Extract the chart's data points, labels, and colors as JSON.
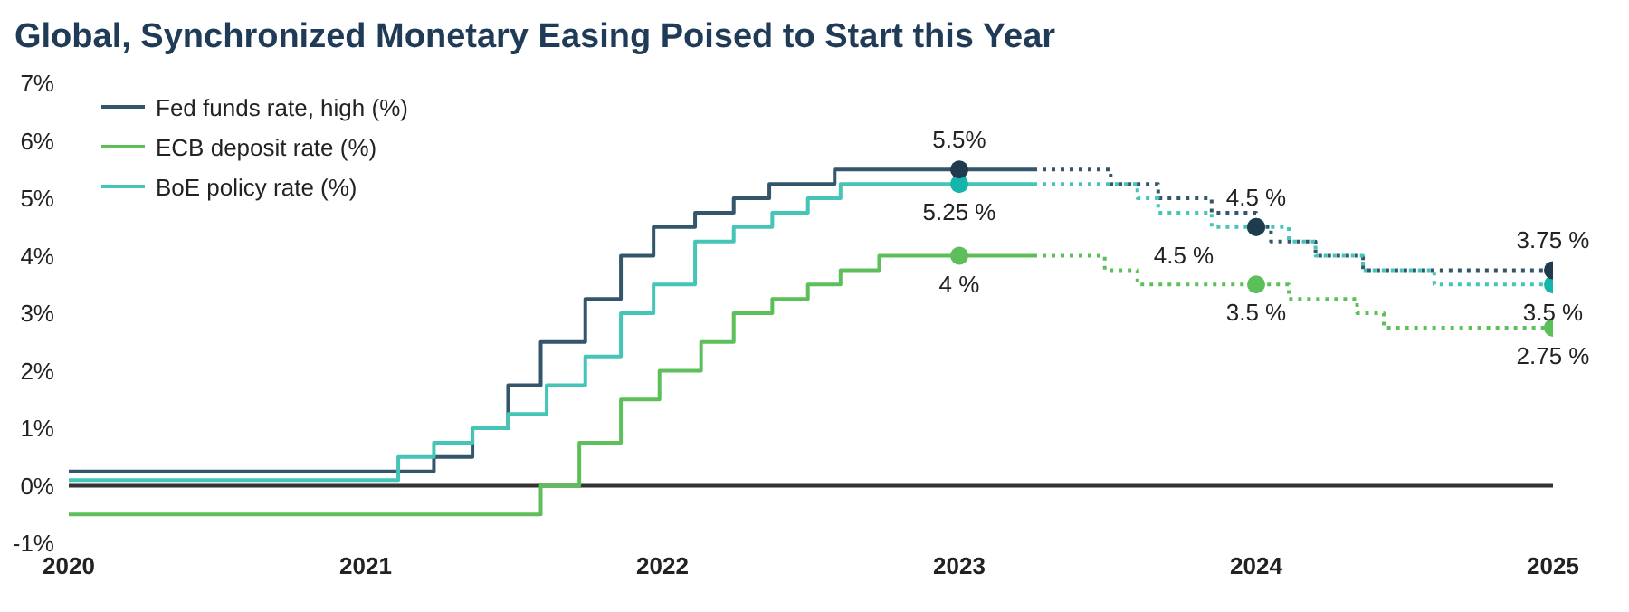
{
  "chart_data": {
    "type": "step",
    "title": "Global, Synchronized Monetary Easing Poised to Start this Year",
    "xlim": [
      2020,
      2025
    ],
    "xticks": [
      2020,
      2021,
      2022,
      2023,
      2024,
      2025
    ],
    "ylim": [
      -1,
      7
    ],
    "yticks": [
      {
        "value": -1,
        "label": "-1%"
      },
      {
        "value": 0,
        "label": "0%"
      },
      {
        "value": 1,
        "label": "1%"
      },
      {
        "value": 2,
        "label": "2%"
      },
      {
        "value": 3,
        "label": "3%"
      },
      {
        "value": 4,
        "label": "4%"
      },
      {
        "value": 5,
        "label": "5%"
      },
      {
        "value": 6,
        "label": "6%"
      },
      {
        "value": 7,
        "label": "7%"
      }
    ],
    "grid": false,
    "legend": "top left",
    "line_style": "solid",
    "ref_lines": [
      {
        "axis": "y",
        "value": 0,
        "color": "#333333"
      }
    ],
    "series": [
      {
        "name": "Fed funds rate, high (%)",
        "color": "#34566b",
        "x": [
          2020,
          2021.23,
          2021.36,
          2021.48,
          2021.59,
          2021.74,
          2021.86,
          2021.97,
          2022.11,
          2022.24,
          2022.36,
          2022.58,
          2023.25
        ],
        "values": [
          0.25,
          0.5,
          1.0,
          1.75,
          2.5,
          3.25,
          4.0,
          4.5,
          4.75,
          5.0,
          5.25,
          5.5,
          5.5
        ]
      },
      {
        "name": "ECB deposit rate (%)",
        "color": "#5cbf5a",
        "x": [
          2020,
          2021.59,
          2021.72,
          2021.86,
          2021.99,
          2022.13,
          2022.24,
          2022.37,
          2022.49,
          2022.6,
          2022.73,
          2023.25
        ],
        "values": [
          -0.5,
          0,
          0.75,
          1.5,
          2.0,
          2.5,
          3.0,
          3.25,
          3.5,
          3.75,
          4.0,
          4.0
        ]
      },
      {
        "name": "BoE policy rate (%)",
        "color": "#45c4b8",
        "x": [
          2020,
          2021.11,
          2021.23,
          2021.36,
          2021.48,
          2021.61,
          2021.74,
          2021.86,
          2021.97,
          2022.11,
          2022.24,
          2022.37,
          2022.49,
          2022.6,
          2023.25
        ],
        "values": [
          0.1,
          0.5,
          0.75,
          1.0,
          1.25,
          1.75,
          2.25,
          3.0,
          3.5,
          4.25,
          4.5,
          4.75,
          5.0,
          5.25,
          5.25
        ]
      },
      {
        "color": "#34566b",
        "line_style": "dotted",
        "x": [
          2023.25,
          2023.51,
          2023.67,
          2023.85,
          2024.0,
          2024.05,
          2024.2,
          2024.36,
          2025
        ],
        "values": [
          5.5,
          5.25,
          5.0,
          4.75,
          4.5,
          4.25,
          4.0,
          3.75,
          3.75
        ]
      },
      {
        "color": "#5cbf5a",
        "line_style": "dotted",
        "x": [
          2023.25,
          2023.49,
          2023.6,
          2024.11,
          2024.34,
          2024.43,
          2025
        ],
        "values": [
          4.0,
          3.75,
          3.5,
          3.25,
          3.0,
          2.75,
          2.75
        ]
      },
      {
        "color": "#45c4b8",
        "line_style": "dotted",
        "x": [
          2023.25,
          2023.6,
          2023.67,
          2023.85,
          2024.11,
          2024.2,
          2024.36,
          2024.6,
          2025
        ],
        "values": [
          5.25,
          5.0,
          4.75,
          4.5,
          4.25,
          4.0,
          3.75,
          3.5,
          3.5
        ]
      },
      {
        "type": "scatter",
        "marker": "circle",
        "color": "#5cbf5a",
        "x": [
          2023,
          2024,
          2025
        ],
        "values": [
          4,
          3.5,
          2.75
        ],
        "value_labels": [
          "4 %",
          "3.5 %",
          "2.75 %"
        ]
      },
      {
        "type": "scatter",
        "marker": "circle",
        "color": "#16b5ac",
        "x": [
          2023,
          2024,
          2025
        ],
        "values": [
          5.25,
          4.5,
          3.5
        ],
        "value_labels": [
          "5.25 %",
          "4.5 %",
          "3.5 %"
        ]
      },
      {
        "type": "scatter",
        "marker": "circle",
        "color": "#1f3b4d",
        "x": [
          2023,
          2024,
          2025
        ],
        "values": [
          5.5,
          4.5,
          3.75
        ],
        "value_labels": [
          "5.5%",
          "4.5 %",
          "3.75 %"
        ]
      }
    ]
  }
}
